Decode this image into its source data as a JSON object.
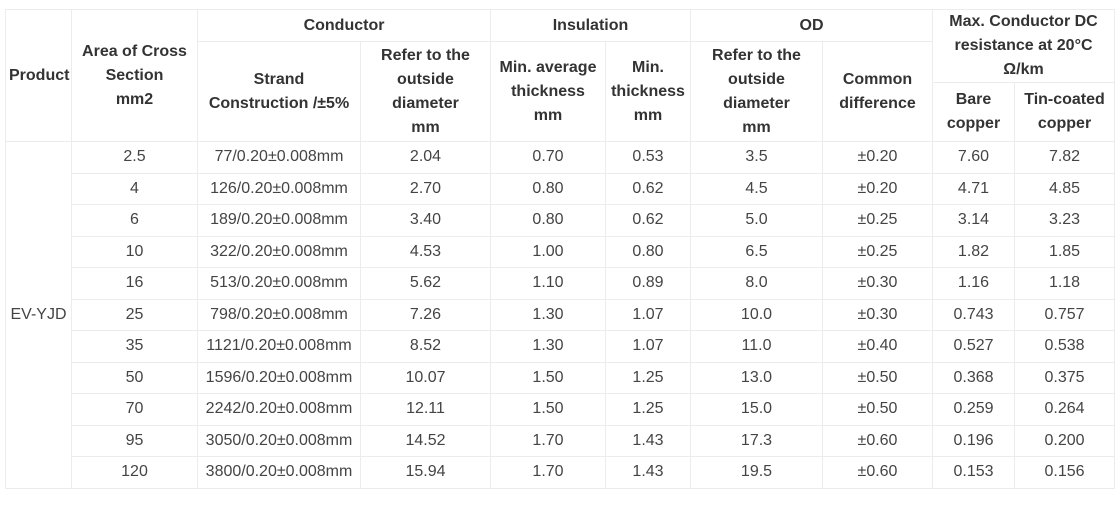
{
  "headers": {
    "product": "Product",
    "area": [
      "Area of Cross",
      "Section",
      "mm2"
    ],
    "conductor": "Conductor",
    "insulation": "Insulation",
    "od": "OD",
    "resistance": [
      "Max. Conductor DC",
      "resistance at 20°C",
      "Ω/km"
    ],
    "strand": [
      "Strand",
      "Construction /±5%"
    ],
    "cond_od": [
      "Refer to the",
      "outside diameter",
      "mm"
    ],
    "min_avg": [
      "Min. average",
      "thickness",
      "mm"
    ],
    "min_thick": [
      "Min.",
      "thickness",
      "mm"
    ],
    "od_ref": [
      "Refer to the",
      "outside",
      "diameter",
      "mm"
    ],
    "common": [
      "Common",
      "difference"
    ],
    "bare": [
      "Bare",
      "copper"
    ],
    "tin": [
      "Tin-coated",
      "copper"
    ]
  },
  "product_name": "EV-YJD",
  "rows": [
    [
      "2.5",
      "77/0.20±0.008mm",
      "2.04",
      "0.70",
      "0.53",
      "3.5",
      "±0.20",
      "7.60",
      "7.82"
    ],
    [
      "4",
      "126/0.20±0.008mm",
      "2.70",
      "0.80",
      "0.62",
      "4.5",
      "±0.20",
      "4.71",
      "4.85"
    ],
    [
      "6",
      "189/0.20±0.008mm",
      "3.40",
      "0.80",
      "0.62",
      "5.0",
      "±0.25",
      "3.14",
      "3.23"
    ],
    [
      "10",
      "322/0.20±0.008mm",
      "4.53",
      "1.00",
      "0.80",
      "6.5",
      "±0.25",
      "1.82",
      "1.85"
    ],
    [
      "16",
      "513/0.20±0.008mm",
      "5.62",
      "1.10",
      "0.89",
      "8.0",
      "±0.30",
      "1.16",
      "1.18"
    ],
    [
      "25",
      "798/0.20±0.008mm",
      "7.26",
      "1.30",
      "1.07",
      "10.0",
      "±0.30",
      "0.743",
      "0.757"
    ],
    [
      "35",
      "1121/0.20±0.008mm",
      "8.52",
      "1.30",
      "1.07",
      "11.0",
      "±0.40",
      "0.527",
      "0.538"
    ],
    [
      "50",
      "1596/0.20±0.008mm",
      "10.07",
      "1.50",
      "1.25",
      "13.0",
      "±0.50",
      "0.368",
      "0.375"
    ],
    [
      "70",
      "2242/0.20±0.008mm",
      "12.11",
      "1.50",
      "1.25",
      "15.0",
      "±0.50",
      "0.259",
      "0.264"
    ],
    [
      "95",
      "3050/0.20±0.008mm",
      "14.52",
      "1.70",
      "1.43",
      "17.3",
      "±0.60",
      "0.196",
      "0.200"
    ],
    [
      "120",
      "3800/0.20±0.008mm",
      "15.94",
      "1.70",
      "1.43",
      "19.5",
      "±0.60",
      "0.153",
      "0.156"
    ]
  ]
}
